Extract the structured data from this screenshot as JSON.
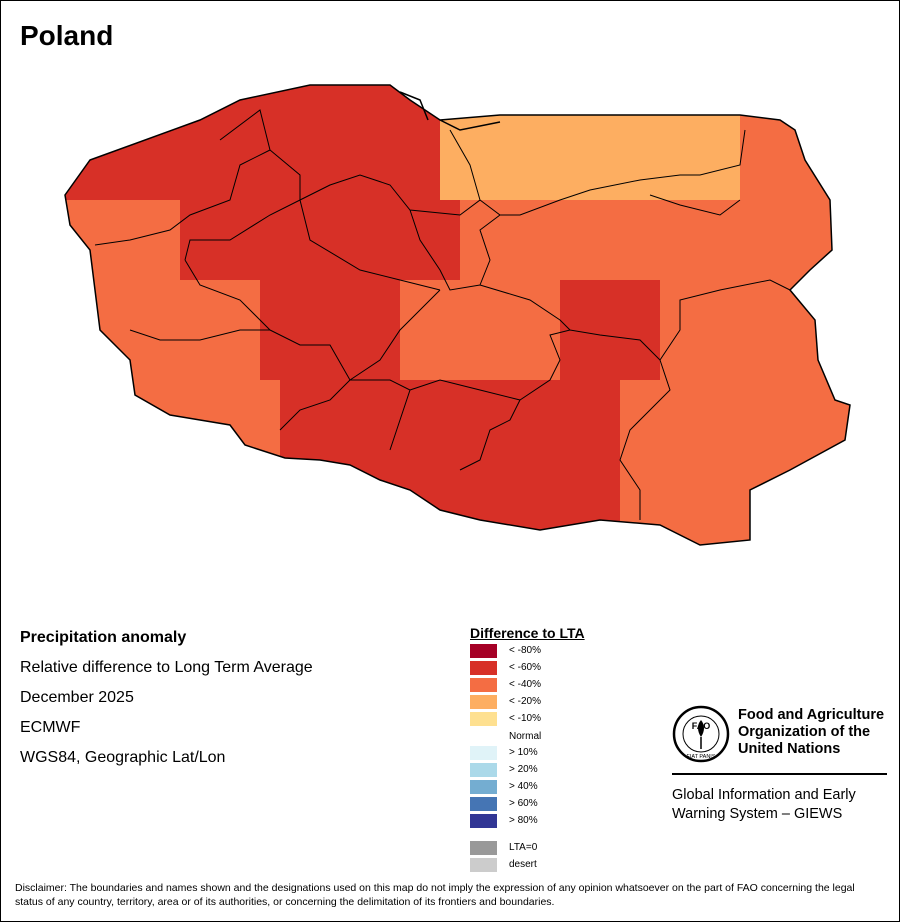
{
  "title": "Poland",
  "info": {
    "heading": "Precipitation anomaly",
    "subtitle": "Relative difference to Long Term Average",
    "period": "December 2025",
    "source": "ECMWF",
    "projection": "WGS84, Geographic Lat/Lon"
  },
  "legend": {
    "title": "Difference to LTA",
    "items": [
      {
        "label": "< -80%",
        "color": "#a50026"
      },
      {
        "label": "< -60%",
        "color": "#d73027"
      },
      {
        "label": "< -40%",
        "color": "#f46d43"
      },
      {
        "label": "< -20%",
        "color": "#fdae61"
      },
      {
        "label": "< -10%",
        "color": "#fee090"
      },
      {
        "label": "Normal",
        "color": "#ffffff"
      },
      {
        "label": "> 10%",
        "color": "#e0f3f8"
      },
      {
        "label": "> 20%",
        "color": "#abd9e9"
      },
      {
        "label": "> 40%",
        "color": "#74add1"
      },
      {
        "label": "> 60%",
        "color": "#4575b4"
      },
      {
        "label": "> 80%",
        "color": "#313695"
      },
      {
        "label": "LTA=0",
        "color": "#999999"
      },
      {
        "label": "desert",
        "color": "#cccccc"
      }
    ]
  },
  "fao": {
    "name_line1": "Food and Agriculture",
    "name_line2": "Organization of the",
    "name_line3": "United Nations",
    "logo_text": "FAO",
    "motto": "FIAT PANIS",
    "giews_line1": "Global Information and Early",
    "giews_line2": "Warning System – GIEWS"
  },
  "map_regions": [
    {
      "name": "west-pomerania",
      "class": "< -60%"
    },
    {
      "name": "pomerania",
      "class": "< -60%"
    },
    {
      "name": "warmia-masuria",
      "class": "< -20%"
    },
    {
      "name": "podlaskie",
      "class": "< -40%"
    },
    {
      "name": "lubusz",
      "class": "< -40%"
    },
    {
      "name": "greater-poland",
      "class": "< -60%"
    },
    {
      "name": "kuyavia-pomerania",
      "class": "< -60%"
    },
    {
      "name": "masovia",
      "class": "< -40%"
    },
    {
      "name": "lodz",
      "class": "< -60%"
    },
    {
      "name": "lower-silesia",
      "class": "< -40%"
    },
    {
      "name": "opole",
      "class": "< -60%"
    },
    {
      "name": "silesia",
      "class": "< -60%"
    },
    {
      "name": "lesser-poland",
      "class": "< -60%"
    },
    {
      "name": "swietokrzyskie",
      "class": "< -60%"
    },
    {
      "name": "subcarpathia",
      "class": "< -40%"
    },
    {
      "name": "lublin",
      "class": "< -40%"
    }
  ],
  "disclaimer": "Disclaimer: The boundaries and names shown and the designations used on this map do not imply the expression of any opinion whatsoever on the part of FAO concerning the legal status of any country, territory, area or of its authorities, or concerning the delimitation of its frontiers and boundaries."
}
